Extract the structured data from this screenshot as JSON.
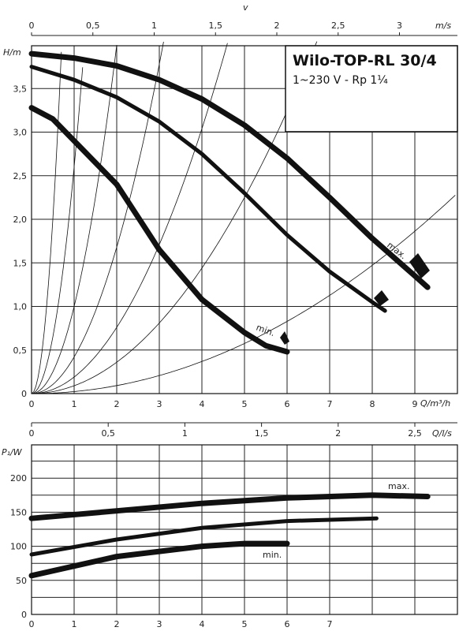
{
  "chart_data": [
    {
      "type": "line",
      "title": "Wilo-TOP-RL 30/4",
      "subtitle": "1~230 V - Rp 1¼",
      "xlabel": "Q/m³/h",
      "ylabel": "H/m",
      "x2label_letter": "v",
      "x2label_unit": "m/s",
      "xlim": [
        0,
        10
      ],
      "ylim": [
        0,
        4.05
      ],
      "x_ticks": [
        "0",
        "1",
        "2",
        "3",
        "4",
        "5",
        "6",
        "7",
        "8",
        "9"
      ],
      "y_ticks": [
        "0",
        "0,5",
        "1,0",
        "1,5",
        "2,0",
        "2,5",
        "3,0",
        "3,5"
      ],
      "x2_ticks": [
        "0",
        "0,5",
        "1",
        "1,5",
        "2",
        "2,5",
        "3"
      ],
      "grid": true,
      "series": [
        {
          "name": "max.",
          "x": [
            0,
            1,
            2,
            3,
            4,
            5,
            6,
            7,
            8,
            9,
            9.3
          ],
          "y": [
            3.9,
            3.85,
            3.76,
            3.6,
            3.38,
            3.08,
            2.7,
            2.25,
            1.78,
            1.35,
            1.22
          ]
        },
        {
          "name": "",
          "x": [
            0,
            1,
            2,
            3,
            4,
            5,
            6,
            7,
            8,
            8.3
          ],
          "y": [
            3.75,
            3.6,
            3.4,
            3.12,
            2.75,
            2.3,
            1.82,
            1.4,
            1.05,
            0.95
          ]
        },
        {
          "name": "min.",
          "x": [
            0,
            0.5,
            1,
            2,
            3,
            4,
            5,
            5.5,
            6
          ],
          "y": [
            3.28,
            3.15,
            2.9,
            2.4,
            1.65,
            1.08,
            0.7,
            0.55,
            0.48
          ]
        }
      ]
    },
    {
      "type": "line",
      "xlabel": "Q/m³/h",
      "x2label": "Q/l/s",
      "ylabel": "P₁/W",
      "xlim": [
        0,
        10
      ],
      "ylim": [
        0,
        225
      ],
      "x_ticks": [
        "0",
        "1",
        "2",
        "3",
        "4",
        "5",
        "6",
        "7"
      ],
      "y_ticks": [
        "0",
        "50",
        "100",
        "150",
        "200"
      ],
      "x2_ticks": [
        "0",
        "0,5",
        "1",
        "1,5",
        "2",
        "2,5"
      ],
      "grid": true,
      "series": [
        {
          "name": "max.",
          "x": [
            0,
            2,
            4,
            6,
            8,
            9.3
          ],
          "y": [
            141,
            152,
            163,
            171,
            175,
            173
          ]
        },
        {
          "name": "",
          "x": [
            0,
            2,
            4,
            6,
            8.1
          ],
          "y": [
            88,
            110,
            127,
            137,
            141
          ]
        },
        {
          "name": "min.",
          "x": [
            0,
            2,
            4,
            5,
            6
          ],
          "y": [
            57,
            85,
            100,
            104,
            104
          ]
        }
      ]
    }
  ]
}
